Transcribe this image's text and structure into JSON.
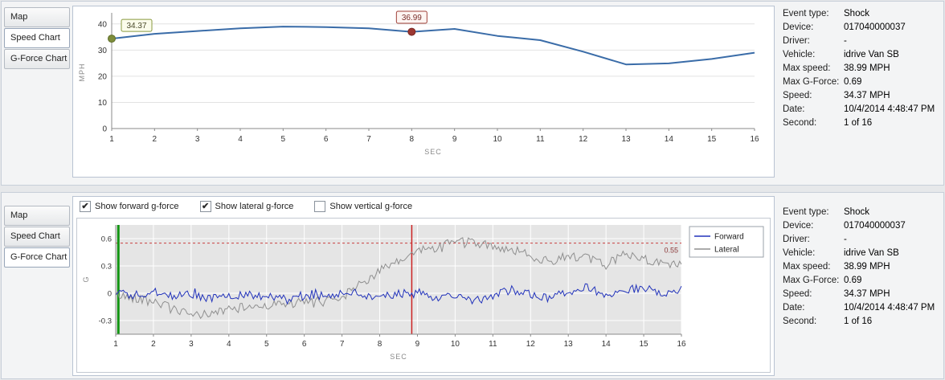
{
  "event_info": {
    "rows": [
      {
        "label": "Event type:",
        "value": "Shock"
      },
      {
        "label": "Device:",
        "value": "017040000037"
      },
      {
        "label": "Driver:",
        "value": "-"
      },
      {
        "label": "Vehicle:",
        "value": "idrive Van SB"
      },
      {
        "label": "Max speed:",
        "value": "38.99 MPH"
      },
      {
        "label": "Max G-Force:",
        "value": "0.69"
      },
      {
        "label": "Speed:",
        "value": "34.37 MPH"
      },
      {
        "label": "Date:",
        "value": "10/4/2014 4:48:47 PM"
      },
      {
        "label": "Second:",
        "value": "1 of 16"
      }
    ]
  },
  "speed_panel": {
    "tabs": [
      {
        "label": "Map",
        "active": false
      },
      {
        "label": "Speed Chart",
        "active": true
      },
      {
        "label": "G-Force Chart",
        "active": false
      }
    ],
    "chart_data": {
      "type": "line",
      "xlabel": "SEC",
      "ylabel": "MPH",
      "x": [
        1,
        2,
        3,
        4,
        5,
        6,
        7,
        8,
        9,
        10,
        11,
        12,
        13,
        14,
        15,
        16
      ],
      "values": [
        34.37,
        36.2,
        37.3,
        38.3,
        38.99,
        38.8,
        38.3,
        36.99,
        38.1,
        35.4,
        33.8,
        29.4,
        24.5,
        24.9,
        26.6,
        29.0
      ],
      "ylim": [
        0,
        43
      ],
      "yticks": [
        0,
        10,
        20,
        30,
        40
      ],
      "line_color": "#3a6ca8",
      "annotations": [
        {
          "x": 1,
          "y": 34.37,
          "label": "34.37",
          "marker_color": "#7d8d3b",
          "marker_stroke": "#5f6e2a",
          "box_border": "#8a9a40",
          "box_fill": "#fbfceb",
          "text_color": "#4a4a2a"
        },
        {
          "x": 8,
          "y": 36.99,
          "label": "36.99",
          "marker_color": "#9c3732",
          "marker_stroke": "#7a2823",
          "box_border": "#a04038",
          "box_fill": "#fdf5f2",
          "text_color": "#7a2e2a"
        }
      ]
    }
  },
  "gforce_panel": {
    "tabs": [
      {
        "label": "Map",
        "active": false
      },
      {
        "label": "Speed Chart",
        "active": false
      },
      {
        "label": "G-Force Chart",
        "active": true
      }
    ],
    "checkboxes": [
      {
        "label": "Show forward g-force",
        "checked": true
      },
      {
        "label": "Show lateral g-force",
        "checked": true
      },
      {
        "label": "Show vertical g-force",
        "checked": false
      }
    ],
    "chart_data": {
      "type": "line",
      "xlabel": "SEC",
      "ylabel": "G",
      "ylim": [
        -0.45,
        0.75
      ],
      "yticks": [
        -0.3,
        0,
        0.3,
        0.6
      ],
      "xticks": [
        1,
        2,
        3,
        4,
        5,
        6,
        7,
        8,
        9,
        10,
        11,
        12,
        13,
        14,
        15,
        16
      ],
      "x_start": 1,
      "x_end": 16,
      "keypoint_step": 0.5,
      "sample_step": 0.05,
      "noise_seed": 42,
      "plot_bg": "#e5e5e5",
      "series": [
        {
          "name": "Lateral",
          "color": "#8f8f8f",
          "noise": 0.05,
          "keypoints": [
            -0.02,
            -0.05,
            -0.08,
            -0.17,
            -0.25,
            -0.22,
            -0.18,
            -0.15,
            -0.13,
            -0.12,
            -0.1,
            -0.08,
            -0.04,
            0.1,
            0.25,
            0.34,
            0.47,
            0.5,
            0.58,
            0.55,
            0.52,
            0.48,
            0.41,
            0.35,
            0.42,
            0.38,
            0.31,
            0.44,
            0.38,
            0.33,
            0.3
          ]
        },
        {
          "name": "Forward",
          "color": "#2233bb",
          "noise": 0.045,
          "keypoints": [
            0.0,
            -0.02,
            0.02,
            -0.04,
            -0.01,
            -0.06,
            -0.03,
            -0.01,
            -0.04,
            -0.06,
            -0.02,
            -0.03,
            0.01,
            -0.02,
            -0.04,
            -0.01,
            0.02,
            -0.06,
            -0.02,
            -0.09,
            -0.03,
            0.04,
            -0.01,
            -0.06,
            0.02,
            0.07,
            -0.03,
            0.04,
            0.05,
            0.01,
            0.04
          ]
        }
      ],
      "legend": [
        "Forward",
        "Lateral"
      ],
      "legend_colors": [
        "#2233bb",
        "#8f8f8f"
      ],
      "threshold": {
        "value": 0.55,
        "label": "0.55",
        "color": "#c94040",
        "label_color": "#8b3a3a"
      },
      "vlines": [
        {
          "x": 1.07,
          "color": "#129412",
          "width": 3
        },
        {
          "x": 8.85,
          "color": "#cc2222",
          "width": 1.5
        }
      ]
    }
  }
}
